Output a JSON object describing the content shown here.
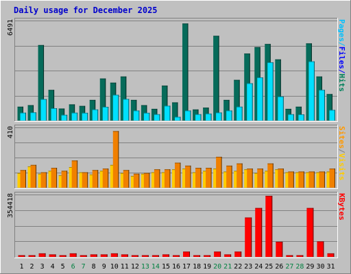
{
  "chart_data": {
    "type": "bar",
    "title": "Daily usage for December 2025",
    "days": [
      "1",
      "2",
      "3",
      "4",
      "5",
      "6",
      "7",
      "8",
      "9",
      "10",
      "11",
      "12",
      "13",
      "14",
      "15",
      "16",
      "17",
      "18",
      "19",
      "20",
      "21",
      "22",
      "23",
      "24",
      "25",
      "26",
      "27",
      "28",
      "29",
      "30",
      "31"
    ],
    "weekend_days": [
      "6",
      "7",
      "13",
      "14",
      "20",
      "21",
      "27",
      "28"
    ],
    "colors": {
      "pages": "#066b5a",
      "files": "#00e0ff",
      "hits": "#006666",
      "visits": "#f08000",
      "sites": "#ffcc00",
      "kbytes": "#ff0000",
      "weekday": "#000000",
      "weekend": "#008040"
    },
    "panels": [
      {
        "id": "hits_panel",
        "max_label": "6491",
        "ymax": 6491,
        "legend": [
          {
            "text": "Pages",
            "color": "#00c0ff"
          },
          {
            "text": "Files",
            "color": "#0000ff"
          },
          {
            "text": "Hits",
            "color": "#00805a"
          }
        ],
        "series": [
          {
            "name": "Hits",
            "color": "#066b5a",
            "values": [
              900,
              1000,
              4900,
              1990,
              780,
              1050,
              950,
              1340,
              2730,
              2460,
              2860,
              1340,
              1000,
              760,
              2270,
              1180,
              6300,
              720,
              840,
              5500,
              1340,
              2640,
              4350,
              4770,
              4970,
              3970,
              760,
              900,
              5010,
              2860,
              1720
            ]
          },
          {
            "name": "Files",
            "color": "#00e0ff",
            "values": [
              510,
              530,
              1390,
              800,
              370,
              510,
              500,
              720,
              890,
              1670,
              1400,
              650,
              500,
              410,
              960,
              240,
              650,
              410,
              450,
              520,
              650,
              900,
              2420,
              2800,
              3780,
              1560,
              410,
              400,
              3840,
              1990,
              690
            ]
          },
          {
            "name": "Pages",
            "color": "#00c0ff",
            "values": [
              0,
              0,
              0,
              0,
              0,
              0,
              0,
              0,
              0,
              0,
              0,
              0,
              0,
              0,
              0,
              0,
              0,
              0,
              0,
              0,
              0,
              0,
              0,
              0,
              0,
              0,
              0,
              0,
              0,
              0,
              0
            ]
          }
        ]
      },
      {
        "id": "visits_panel",
        "max_label": "410",
        "ymax": 410,
        "legend": [
          {
            "text": "Sites",
            "color": "#ff9900"
          },
          {
            "text": "/",
            "color": "#808080"
          },
          {
            "text": "Visits",
            "color": "#ffcc00"
          }
        ],
        "series": [
          {
            "name": "Sites",
            "color": "#ffcc00",
            "values": [
              100,
              145,
              95,
              115,
              85,
              140,
              105,
              90,
              115,
              155,
              100,
              80,
              95,
              105,
              105,
              125,
              130,
              105,
              115,
              130,
              110,
              115,
              125,
              100,
              115,
              125,
              105,
              105,
              105,
              105,
              110
            ]
          },
          {
            "name": "Visits",
            "color": "#f08000",
            "values": [
              120,
              155,
              105,
              135,
              115,
              185,
              105,
              120,
              130,
              385,
              120,
              95,
              100,
              125,
              125,
              170,
              150,
              135,
              135,
              210,
              150,
              165,
              130,
              130,
              165,
              130,
              110,
              110,
              110,
              110,
              130
            ]
          }
        ]
      },
      {
        "id": "kbytes_panel",
        "max_label": "354418",
        "ymax": 354418,
        "legend": [
          {
            "text": "KBytes",
            "color": "#ff0000"
          }
        ],
        "series": [
          {
            "name": "KBytes",
            "color": "#ff0000",
            "values": [
              9400,
              9400,
              20000,
              14000,
              9400,
              20000,
              9400,
              14000,
              14000,
              20000,
              14000,
              9400,
              9400,
              9400,
              14000,
              9400,
              30000,
              9400,
              9400,
              30000,
              14000,
              30000,
              224000,
              278000,
              347000,
              86000,
              9400,
              9400,
              278000,
              88000,
              20000
            ]
          }
        ]
      }
    ]
  }
}
